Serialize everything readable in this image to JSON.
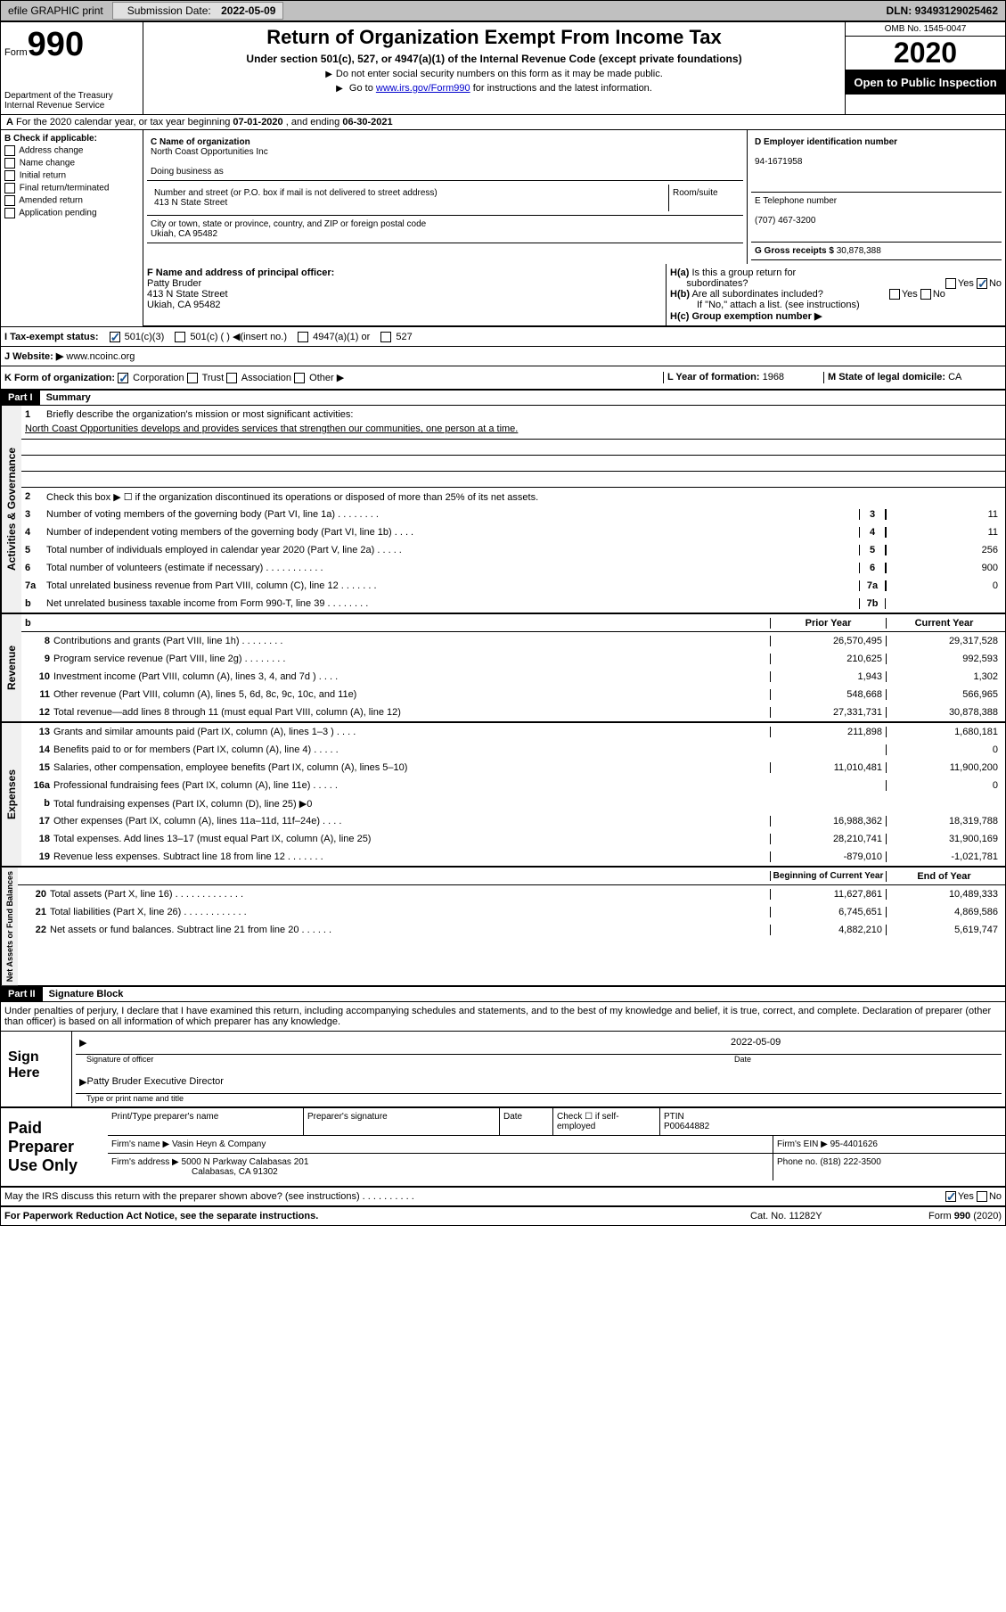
{
  "topbar": {
    "efile": "efile GRAPHIC print",
    "sub_label": "Submission Date:",
    "sub_date": "2022-05-09",
    "dln_label": "DLN:",
    "dln": "93493129025462"
  },
  "header": {
    "form_label": "Form",
    "form_num": "990",
    "dept": "Department of the Treasury\nInternal Revenue Service",
    "title": "Return of Organization Exempt From Income Tax",
    "sub": "Under section 501(c), 527, or 4947(a)(1) of the Internal Revenue Code (except private foundations)",
    "note1": "Do not enter social security numbers on this form as it may be made public.",
    "note2_pre": "Go to ",
    "note2_link": "www.irs.gov/Form990",
    "note2_post": " for instructions and the latest information.",
    "omb": "OMB No. 1545-0047",
    "year": "2020",
    "insp": "Open to Public Inspection"
  },
  "row_a": {
    "text_pre": "For the 2020 calendar year, or tax year beginning ",
    "begin": "07-01-2020",
    "mid": " , and ending ",
    "end": "06-30-2021"
  },
  "box_b": {
    "label": "B Check if applicable:",
    "items": [
      "Address change",
      "Name change",
      "Initial return",
      "Final return/terminated",
      "Amended return",
      "Application pending"
    ]
  },
  "box_c": {
    "name_label": "C Name of organization",
    "name": "North Coast Opportunities Inc",
    "dba_label": "Doing business as",
    "dba": "",
    "addr_label": "Number and street (or P.O. box if mail is not delivered to street address)",
    "room": "Room/suite",
    "addr": "413 N State Street",
    "city_label": "City or town, state or province, country, and ZIP or foreign postal code",
    "city": "Ukiah, CA  95482"
  },
  "box_d": {
    "label": "D Employer identification number",
    "ein": "94-1671958"
  },
  "box_e": {
    "label": "E Telephone number",
    "phone": "(707) 467-3200"
  },
  "box_g": {
    "label": "G Gross receipts $",
    "amount": "30,878,388"
  },
  "box_f": {
    "label": "F Name and address of principal officer:",
    "name": "Patty Bruder",
    "addr": "413 N State Street",
    "city": "Ukiah, CA  95482"
  },
  "box_h": {
    "ha_label": "H(a)  Is this a group return for subordinates?",
    "ha_yes": "Yes",
    "ha_no": "No",
    "hb_label": "H(b)  Are all subordinates included?",
    "hb_note": "If \"No,\" attach a list. (see instructions)",
    "hc_label": "H(c)  Group exemption number ▶"
  },
  "tax_status": {
    "label": "I  Tax-exempt status:",
    "c3": "501(c)(3)",
    "c": "501(c) (  ) ◀(insert no.)",
    "a1": "4947(a)(1) or",
    "s527": "527"
  },
  "website": {
    "label": "J  Website: ▶",
    "url": "www.ncoinc.org"
  },
  "k_row": {
    "label": "K Form of organization:",
    "opts": [
      "Corporation",
      "Trust",
      "Association",
      "Other ▶"
    ],
    "l_label": "L Year of formation:",
    "l_val": "1968",
    "m_label": "M State of legal domicile:",
    "m_val": "CA"
  },
  "parts": {
    "p1": {
      "hdr": "Part I",
      "title": "Summary"
    },
    "p2": {
      "hdr": "Part II",
      "title": "Signature Block"
    }
  },
  "summary": {
    "l1_label": "Briefly describe the organization's mission or most significant activities:",
    "l1_text": "North Coast Opportunities develops and provides services that strengthen our communities, one person at a time.",
    "l2": "Check this box ▶ ☐ if the organization discontinued its operations or disposed of more than 25% of its net assets.",
    "lines_ag": [
      {
        "n": "3",
        "txt": "Number of voting members of the governing body (Part VI, line 1a)  .   .   .   .   .   .   .   .",
        "box": "3",
        "val": "11"
      },
      {
        "n": "4",
        "txt": "Number of independent voting members of the governing body (Part VI, line 1b)  .   .   .   .",
        "box": "4",
        "val": "11"
      },
      {
        "n": "5",
        "txt": "Total number of individuals employed in calendar year 2020 (Part V, line 2a)  .   .   .   .   .",
        "box": "5",
        "val": "256"
      },
      {
        "n": "6",
        "txt": "Total number of volunteers (estimate if necessary)  .   .   .   .   .   .   .   .   .   .   .",
        "box": "6",
        "val": "900"
      },
      {
        "n": "7a",
        "txt": "Total unrelated business revenue from Part VIII, column (C), line 12  .   .   .   .   .   .   .",
        "box": "7a",
        "val": "0"
      },
      {
        "n": "b",
        "txt": "Net unrelated business taxable income from Form 990-T, line 39  .   .   .   .   .   .   .   .",
        "box": "7b",
        "val": ""
      }
    ],
    "col_hdr": {
      "prior": "Prior Year",
      "curr": "Current Year"
    },
    "revenue": [
      {
        "n": "8",
        "txt": "Contributions and grants (Part VIII, line 1h)  .   .   .   .   .   .   .   .",
        "p": "26,570,495",
        "c": "29,317,528"
      },
      {
        "n": "9",
        "txt": "Program service revenue (Part VIII, line 2g)  .   .   .   .   .   .   .   .",
        "p": "210,625",
        "c": "992,593"
      },
      {
        "n": "10",
        "txt": "Investment income (Part VIII, column (A), lines 3, 4, and 7d )  .   .   .   .",
        "p": "1,943",
        "c": "1,302"
      },
      {
        "n": "11",
        "txt": "Other revenue (Part VIII, column (A), lines 5, 6d, 8c, 9c, 10c, and 11e)",
        "p": "548,668",
        "c": "566,965"
      },
      {
        "n": "12",
        "txt": "Total revenue—add lines 8 through 11 (must equal Part VIII, column (A), line 12)",
        "p": "27,331,731",
        "c": "30,878,388"
      }
    ],
    "expenses": [
      {
        "n": "13",
        "txt": "Grants and similar amounts paid (Part IX, column (A), lines 1–3 )  .   .   .   .",
        "p": "211,898",
        "c": "1,680,181"
      },
      {
        "n": "14",
        "txt": "Benefits paid to or for members (Part IX, column (A), line 4)  .   .   .   .   .",
        "p": "",
        "c": "0"
      },
      {
        "n": "15",
        "txt": "Salaries, other compensation, employee benefits (Part IX, column (A), lines 5–10)",
        "p": "11,010,481",
        "c": "11,900,200"
      },
      {
        "n": "16a",
        "txt": "Professional fundraising fees (Part IX, column (A), line 11e)  .   .   .   .   .",
        "p": "",
        "c": "0"
      },
      {
        "n": "b",
        "txt": "Total fundraising expenses (Part IX, column (D), line 25) ▶0",
        "p": "__gray__",
        "c": "__gray__"
      },
      {
        "n": "17",
        "txt": "Other expenses (Part IX, column (A), lines 11a–11d, 11f–24e)  .   .   .   .",
        "p": "16,988,362",
        "c": "18,319,788"
      },
      {
        "n": "18",
        "txt": "Total expenses. Add lines 13–17 (must equal Part IX, column (A), line 25)",
        "p": "28,210,741",
        "c": "31,900,169"
      },
      {
        "n": "19",
        "txt": "Revenue less expenses. Subtract line 18 from line 12  .   .   .   .   .   .   .",
        "p": "-879,010",
        "c": "-1,021,781"
      }
    ],
    "col_hdr2": {
      "prior": "Beginning of Current Year",
      "curr": "End of Year"
    },
    "netassets": [
      {
        "n": "20",
        "txt": "Total assets (Part X, line 16)  .   .   .   .   .   .   .   .   .   .   .   .   .",
        "p": "11,627,861",
        "c": "10,489,333"
      },
      {
        "n": "21",
        "txt": "Total liabilities (Part X, line 26)  .   .   .   .   .   .   .   .   .   .   .   .",
        "p": "6,745,651",
        "c": "4,869,586"
      },
      {
        "n": "22",
        "txt": "Net assets or fund balances. Subtract line 21 from line 20  .   .   .   .   .   .",
        "p": "4,882,210",
        "c": "5,619,747"
      }
    ],
    "labels": {
      "ag": "Activities & Governance",
      "rev": "Revenue",
      "exp": "Expenses",
      "na": "Net Assets or Fund Balances"
    }
  },
  "sig": {
    "decl": "Under penalties of perjury, I declare that I have examined this return, including accompanying schedules and statements, and to the best of my knowledge and belief, it is true, correct, and complete. Declaration of preparer (other than officer) is based on all information of which preparer has any knowledge.",
    "sign_here": "Sign Here",
    "sig_officer": "Signature of officer",
    "date_label": "Date",
    "date": "2022-05-09",
    "name_title": "Patty Bruder  Executive Director",
    "type_label": "Type or print name and title"
  },
  "prep": {
    "label": "Paid Preparer Use Only",
    "h1": "Print/Type preparer's name",
    "h2": "Preparer's signature",
    "h3": "Date",
    "h4_pre": "Check ☐ if self-employed",
    "ptin_label": "PTIN",
    "ptin": "P00644882",
    "firm_label": "Firm's name    ▶",
    "firm": "Vasin Heyn & Company",
    "ein_label": "Firm's EIN ▶",
    "ein": "95-4401626",
    "addr_label": "Firm's address ▶",
    "addr1": "5000 N Parkway Calabasas 201",
    "addr2": "Calabasas, CA  91302",
    "phone_label": "Phone no.",
    "phone": "(818) 222-3500"
  },
  "footer": {
    "discuss": "May the IRS discuss this return with the preparer shown above? (see instructions)  .   .   .   .   .   .   .   .   .   .",
    "yes": "Yes",
    "no": "No",
    "pra": "For Paperwork Reduction Act Notice, see the separate instructions.",
    "cat": "Cat. No. 11282Y",
    "form": "Form 990 (2020)"
  }
}
